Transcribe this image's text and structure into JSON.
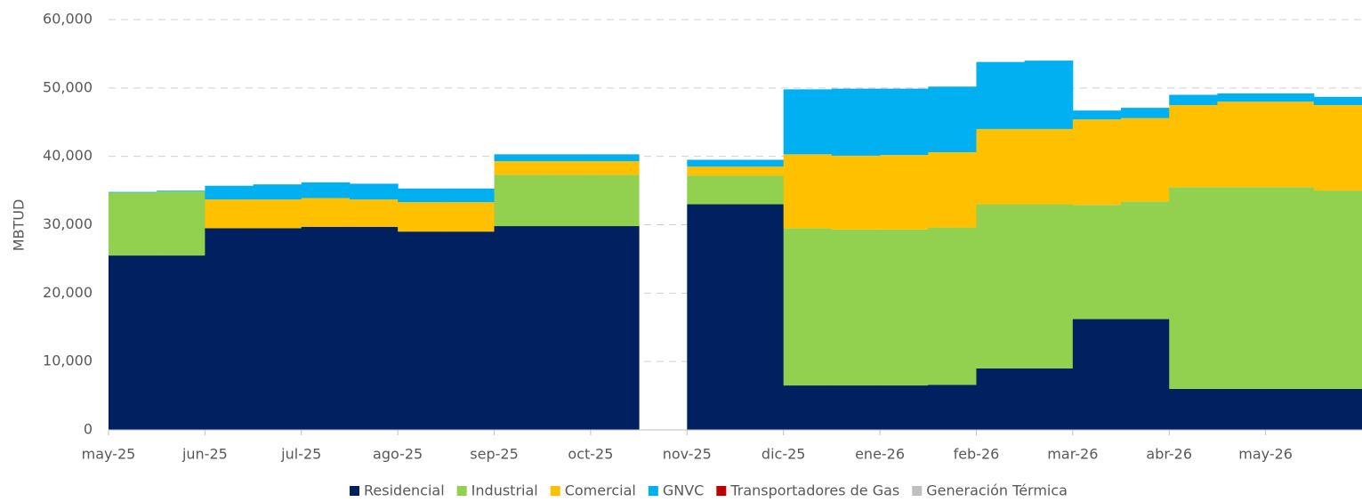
{
  "chart_data": {
    "type": "stacked_step_area",
    "y_label": "MBTUD",
    "categories": [
      "may-25",
      null,
      "jun-25",
      null,
      "jul-25",
      null,
      "ago-25",
      null,
      "sep-25",
      null,
      "oct-25",
      null,
      "nov-25",
      null,
      "dic-25",
      null,
      "ene-26",
      null,
      "feb-26",
      null,
      "mar-26",
      null,
      "abr-26",
      null,
      "may-26",
      null
    ],
    "series": [
      {
        "name": "Residencial",
        "color": "#002060",
        "values": [
          25500,
          25500,
          29500,
          29500,
          29700,
          29700,
          29000,
          29000,
          29800,
          29800,
          29800,
          null,
          33000,
          33000,
          6500,
          6500,
          6500,
          6600,
          9000,
          9000,
          16200,
          16200,
          6000,
          6000,
          6000,
          6000
        ]
      },
      {
        "name": "Industrial",
        "color": "#92d050",
        "values": [
          9200,
          9400,
          0,
          0,
          0,
          0,
          0,
          0,
          7500,
          7500,
          7500,
          null,
          4200,
          4200,
          23000,
          22800,
          22800,
          23000,
          24000,
          24000,
          16700,
          17200,
          29500,
          29500,
          29500,
          29000
        ]
      },
      {
        "name": "Comercial",
        "color": "#ffc000",
        "values": [
          0,
          0,
          4200,
          4200,
          4200,
          4000,
          4300,
          4300,
          2000,
          2000,
          2000,
          null,
          1300,
          1300,
          10800,
          10800,
          10900,
          11000,
          11000,
          11000,
          12500,
          12200,
          12000,
          12500,
          12500,
          12500
        ]
      },
      {
        "name": "GNVC",
        "color": "#00b0f0",
        "values": [
          100,
          100,
          2000,
          2200,
          2300,
          2300,
          2000,
          2000,
          1000,
          1000,
          1000,
          null,
          1000,
          1000,
          9500,
          9800,
          9700,
          9600,
          9800,
          10000,
          1300,
          1500,
          1500,
          1200,
          1200,
          1200
        ]
      },
      {
        "name": "Transportadores de Gas",
        "color": "#c00000",
        "values": [
          0,
          0,
          0,
          0,
          0,
          0,
          0,
          0,
          0,
          0,
          0,
          null,
          0,
          0,
          0,
          0,
          0,
          0,
          0,
          0,
          0,
          0,
          0,
          0,
          0,
          0
        ]
      },
      {
        "name": "Generación Térmica",
        "color": "#bfbfbf",
        "values": [
          0,
          0,
          0,
          0,
          0,
          0,
          0,
          0,
          0,
          0,
          0,
          null,
          0,
          0,
          0,
          0,
          0,
          0,
          0,
          0,
          0,
          0,
          0,
          0,
          0,
          0
        ]
      }
    ],
    "ylim": [
      0,
      60000
    ],
    "yticks": [
      0,
      {
        "value": 10000,
        "label": "10,000"
      },
      {
        "value": 20000,
        "label": "20,000"
      },
      {
        "value": 30000,
        "label": "30,000"
      },
      {
        "value": 40000,
        "label": "40,000"
      },
      {
        "value": 50000,
        "label": "50,000"
      },
      {
        "value": 60000,
        "label": "60,000"
      }
    ],
    "grid": true,
    "legend": "bottom"
  }
}
